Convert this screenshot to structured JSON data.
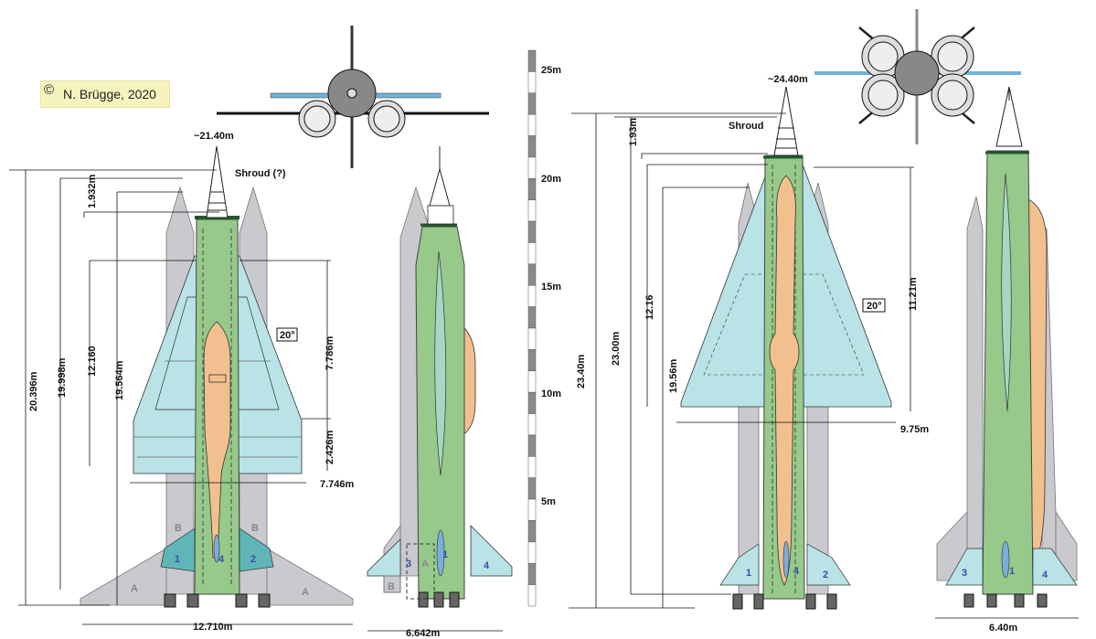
{
  "copyright": {
    "symbol": "©",
    "text": "N. Brügge, 2020"
  },
  "left_vehicle": {
    "tip": "~21.40m",
    "shroud": "Shroud (?)",
    "dims": {
      "d1": "20.396m",
      "d2": "19.998m",
      "d3": "1.932m",
      "d4": "12.160",
      "d5": "19.564m",
      "d6": "7.786m",
      "d7": "2.426m",
      "d8": "7.746m",
      "d9": "12.710m",
      "d10": "6.642m"
    },
    "angle": "20°",
    "fins": {
      "a": "A",
      "b": "B",
      "one": "1",
      "two": "2",
      "three": "3",
      "four": "4"
    }
  },
  "scale": {
    "labels": [
      "25m",
      "20m",
      "15m",
      "10m",
      "5m"
    ]
  },
  "right_vehicle": {
    "tip": "~24.40m",
    "shroud": "Shroud",
    "dims": {
      "d1": "23.40m",
      "d2": "23.00m",
      "d3": "1.93m",
      "d4": "12.16",
      "d5": "19.56m",
      "d6": "11.21m",
      "d7": "9.75m",
      "d8": "6.40m"
    },
    "angle": "20°",
    "fins": {
      "one": "1",
      "two": "2",
      "three": "3",
      "four": "4"
    }
  },
  "colors": {
    "body_green": "#96c98a",
    "wing_cyan": "#b9e3e6",
    "booster_gray": "#c9c9ce",
    "payload_orange": "#f2c08f",
    "fin_teal": "#5fb5b8"
  }
}
